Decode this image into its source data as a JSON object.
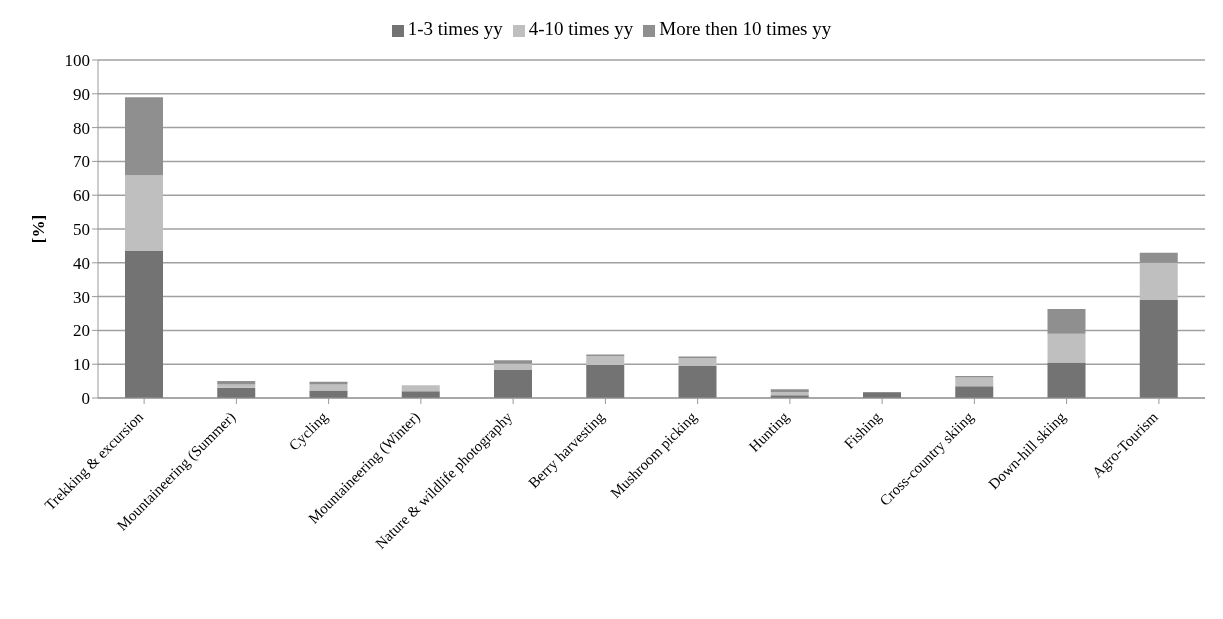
{
  "chart_data": {
    "type": "bar",
    "stacked": true,
    "ylabel": "[%]",
    "categories": [
      "Trekking & excursion",
      "Mountaineering (Summer)",
      "Cycling",
      "Mountaineering (Winter)",
      "Nature & wildlife photography",
      "Berry harvesting",
      "Mushroom picking",
      "Hunting",
      "Fishing",
      "Cross-country skiing",
      "Down-hill skiing",
      "Agro-Tourism"
    ],
    "series": [
      {
        "name": "1-3 times yy",
        "color": "#737373",
        "values": [
          43.5,
          3,
          2.2,
          2,
          8.3,
          9.8,
          9.5,
          0.8,
          1.5,
          3.5,
          10.5,
          29
        ]
      },
      {
        "name": "4-10 times yy",
        "color": "#bfbfbf",
        "values": [
          22.5,
          1,
          1.8,
          1.8,
          1.8,
          2.6,
          2.3,
          1,
          0,
          2.6,
          8.5,
          11
        ]
      },
      {
        "name": "More then 10 times yy",
        "color": "#8f8f8f",
        "values": [
          23,
          1,
          0.8,
          0,
          1.1,
          0.5,
          0.5,
          0.8,
          0.3,
          0.4,
          7.3,
          3
        ]
      }
    ],
    "ylim": [
      0,
      100
    ],
    "yticks": [
      0,
      10,
      20,
      30,
      40,
      50,
      60,
      70,
      80,
      90,
      100
    ],
    "grid": "y",
    "legend": "top"
  }
}
